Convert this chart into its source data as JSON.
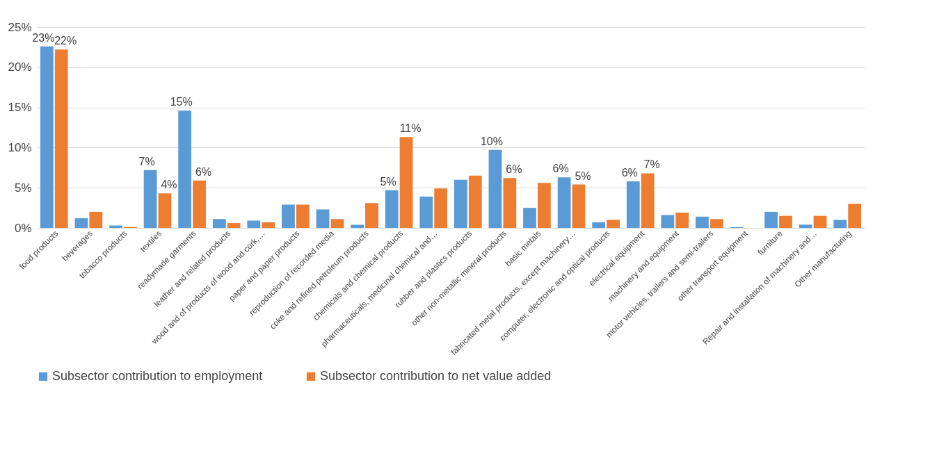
{
  "chart_data": {
    "type": "bar",
    "categories": [
      "food products",
      "beverages",
      "tobacco products",
      "textiles",
      "readymade garments",
      "leather and related products",
      "wood and of products of wood and cork,…",
      "paper and paper products",
      "reproduction of recorded media",
      "coke and refined petroleum products",
      "chemicals and chemical products",
      "pharmaceuticals, medicinal chemical and…",
      "rubber and plastics products",
      "other non-metallic mineral products",
      "basic metals",
      "fabricated metal products, except machinery…",
      "computer, electronic and optical products",
      "electrical equipment",
      "machinery and equipment",
      "motor vehicles, trailers and semi-trailers",
      "other transport equipment",
      "furniture",
      "Repair and installation of machinery and…",
      "Other manufacturing"
    ],
    "series": [
      {
        "name": "Subsector contribution to employment",
        "color": "#5b9bd5",
        "values": [
          22.6,
          1.2,
          0.3,
          7.2,
          14.6,
          1.1,
          0.9,
          2.9,
          2.3,
          0.4,
          4.7,
          3.9,
          6.0,
          9.7,
          2.5,
          6.3,
          0.7,
          5.8,
          1.6,
          1.4,
          0.1,
          2.0,
          0.4,
          1.0
        ],
        "value_labels": [
          "23%",
          null,
          null,
          "7%",
          "15%",
          null,
          null,
          null,
          null,
          null,
          "5%",
          null,
          null,
          "10%",
          null,
          "6%",
          null,
          "6%",
          null,
          null,
          null,
          null,
          null,
          null
        ]
      },
      {
        "name": "Subsector contribution to net value added",
        "color": "#ed7d31",
        "values": [
          22.2,
          2.0,
          0.1,
          4.3,
          5.9,
          0.6,
          0.7,
          2.9,
          1.1,
          3.1,
          11.3,
          4.9,
          6.5,
          6.2,
          5.6,
          5.4,
          1.0,
          6.8,
          1.9,
          1.1,
          0.0,
          1.5,
          1.5,
          3.0
        ],
        "value_labels": [
          "22%",
          null,
          null,
          "4%",
          "6%",
          null,
          null,
          null,
          null,
          null,
          "11%",
          null,
          null,
          "6%",
          null,
          "5%",
          null,
          "7%",
          null,
          null,
          null,
          null,
          null,
          null
        ]
      }
    ],
    "ylim": [
      0,
      25
    ],
    "yticks": [
      {
        "value": 0,
        "label": "0%"
      },
      {
        "value": 5,
        "label": "5%"
      },
      {
        "value": 10,
        "label": "10%"
      },
      {
        "value": 15,
        "label": "15%"
      },
      {
        "value": 20,
        "label": "20%"
      },
      {
        "value": 25,
        "label": "25%"
      }
    ],
    "grid": "y",
    "legend": "bottom"
  }
}
